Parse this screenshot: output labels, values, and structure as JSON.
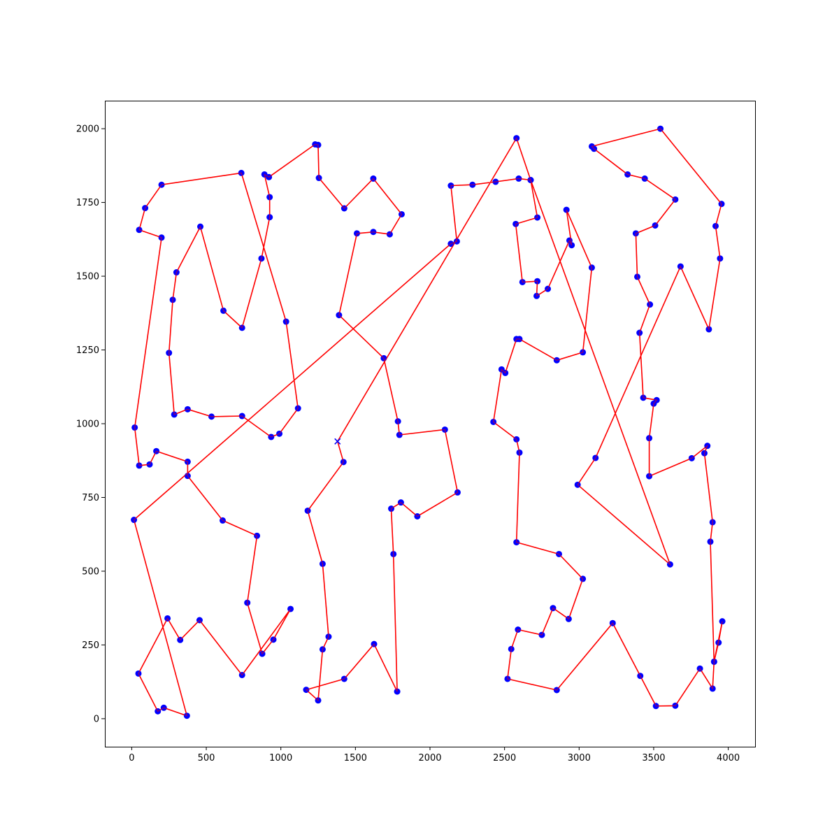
{
  "chart_data": {
    "type": "line",
    "title": "",
    "xlabel": "",
    "ylabel": "",
    "xlim": [
      -180,
      4180
    ],
    "ylim": [
      -95,
      2095
    ],
    "x_ticks": [
      0,
      500,
      1000,
      1500,
      2000,
      2500,
      3000,
      3500,
      4000
    ],
    "y_ticks": [
      0,
      250,
      500,
      750,
      1000,
      1250,
      1500,
      1750,
      2000
    ],
    "x_tick_labels": [
      "0",
      "500",
      "1000",
      "1500",
      "2000",
      "2500",
      "3000",
      "3500",
      "4000"
    ],
    "y_tick_labels": [
      "0",
      "250",
      "500",
      "750",
      "1000",
      "1250",
      "1500",
      "1750",
      "2000"
    ],
    "grid": false,
    "legend": "none",
    "colors": {
      "route": "#ff0000",
      "city": "#0000ff",
      "start": "#0000ff"
    },
    "start_marker": [
      1380,
      940
    ],
    "route": [
      [
        1380,
        940
      ],
      [
        1420,
        870
      ],
      [
        1180,
        705
      ],
      [
        1280,
        525
      ],
      [
        1320,
        278
      ],
      [
        1280,
        235
      ],
      [
        1250,
        62
      ],
      [
        1170,
        98
      ],
      [
        1425,
        135
      ],
      [
        1625,
        253
      ],
      [
        1780,
        92
      ],
      [
        1755,
        558
      ],
      [
        1740,
        712
      ],
      [
        1805,
        733
      ],
      [
        1915,
        686
      ],
      [
        2185,
        767
      ],
      [
        2100,
        980
      ],
      [
        1795,
        962
      ],
      [
        1785,
        1008
      ],
      [
        1690,
        1222
      ],
      [
        1390,
        1368
      ],
      [
        1510,
        1645
      ],
      [
        1620,
        1650
      ],
      [
        1730,
        1642
      ],
      [
        1810,
        1710
      ],
      [
        1620,
        1831
      ],
      [
        1425,
        1730
      ],
      [
        1255,
        1833
      ],
      [
        1250,
        1945
      ],
      [
        1230,
        1947
      ],
      [
        920,
        1836
      ],
      [
        890,
        1845
      ],
      [
        925,
        1768
      ],
      [
        925,
        1700
      ],
      [
        870,
        1560
      ],
      [
        740,
        1325
      ],
      [
        615,
        1383
      ],
      [
        460,
        1668
      ],
      [
        300,
        1513
      ],
      [
        275,
        1420
      ],
      [
        250,
        1240
      ],
      [
        285,
        1031
      ],
      [
        375,
        1049
      ],
      [
        535,
        1024
      ],
      [
        740,
        1026
      ],
      [
        935,
        955
      ],
      [
        990,
        966
      ],
      [
        1115,
        1052
      ],
      [
        1035,
        1346
      ],
      [
        735,
        1850
      ],
      [
        200,
        1810
      ],
      [
        90,
        1731
      ],
      [
        50,
        1657
      ],
      [
        200,
        1631
      ],
      [
        20,
        987
      ],
      [
        50,
        858
      ],
      [
        120,
        862
      ],
      [
        165,
        907
      ],
      [
        375,
        871
      ],
      [
        375,
        823
      ],
      [
        610,
        672
      ],
      [
        840,
        620
      ],
      [
        775,
        393
      ],
      [
        875,
        220
      ],
      [
        950,
        268
      ],
      [
        1065,
        372
      ],
      [
        740,
        148
      ],
      [
        455,
        334
      ],
      [
        325,
        267
      ],
      [
        240,
        340
      ],
      [
        45,
        153
      ],
      [
        175,
        25
      ],
      [
        215,
        37
      ],
      [
        370,
        10
      ],
      [
        15,
        674
      ],
      [
        2140,
        1610
      ],
      [
        2180,
        1618
      ],
      [
        2140,
        1807
      ],
      [
        2285,
        1810
      ],
      [
        2440,
        1820
      ],
      [
        2595,
        1831
      ],
      [
        2675,
        1826
      ],
      [
        2720,
        1699
      ],
      [
        2575,
        1677
      ],
      [
        2620,
        1480
      ],
      [
        2720,
        1483
      ],
      [
        2715,
        1433
      ],
      [
        2790,
        1457
      ],
      [
        2935,
        1621
      ],
      [
        2950,
        1605
      ],
      [
        2915,
        1725
      ],
      [
        3085,
        1529
      ],
      [
        3025,
        1242
      ],
      [
        2850,
        1215
      ],
      [
        2600,
        1287
      ],
      [
        2580,
        1287
      ],
      [
        2505,
        1172
      ],
      [
        2480,
        1184
      ],
      [
        2425,
        1006
      ],
      [
        2580,
        947
      ],
      [
        2600,
        902
      ],
      [
        2580,
        598
      ],
      [
        2865,
        558
      ],
      [
        3025,
        474
      ],
      [
        2930,
        338
      ],
      [
        2825,
        375
      ],
      [
        2750,
        284
      ],
      [
        2590,
        302
      ],
      [
        2545,
        236
      ],
      [
        2520,
        135
      ],
      [
        2850,
        97
      ],
      [
        3225,
        324
      ],
      [
        3410,
        145
      ],
      [
        3515,
        43
      ],
      [
        3645,
        44
      ],
      [
        3810,
        170
      ],
      [
        3895,
        102
      ],
      [
        3905,
        193
      ],
      [
        3960,
        330
      ],
      [
        3935,
        258
      ],
      [
        3905,
        193
      ],
      [
        3880,
        600
      ],
      [
        3895,
        666
      ],
      [
        3840,
        900
      ],
      [
        3860,
        925
      ],
      [
        3755,
        883
      ],
      [
        3470,
        822
      ],
      [
        3470,
        951
      ],
      [
        3500,
        1068
      ],
      [
        3520,
        1080
      ],
      [
        3430,
        1088
      ],
      [
        3405,
        1308
      ],
      [
        3475,
        1404
      ],
      [
        3390,
        1498
      ],
      [
        3380,
        1645
      ],
      [
        3510,
        1672
      ],
      [
        3645,
        1760
      ],
      [
        3440,
        1831
      ],
      [
        3325,
        1845
      ],
      [
        3100,
        1932
      ],
      [
        3085,
        1940
      ],
      [
        3545,
        2000
      ],
      [
        3955,
        1745
      ],
      [
        3915,
        1670
      ],
      [
        3945,
        1560
      ],
      [
        3870,
        1320
      ],
      [
        3680,
        1533
      ],
      [
        3110,
        884
      ],
      [
        2990,
        793
      ],
      [
        3610,
        523
      ],
      [
        2675,
        1826
      ],
      [
        2580,
        1968
      ],
      [
        1380,
        940
      ]
    ]
  }
}
